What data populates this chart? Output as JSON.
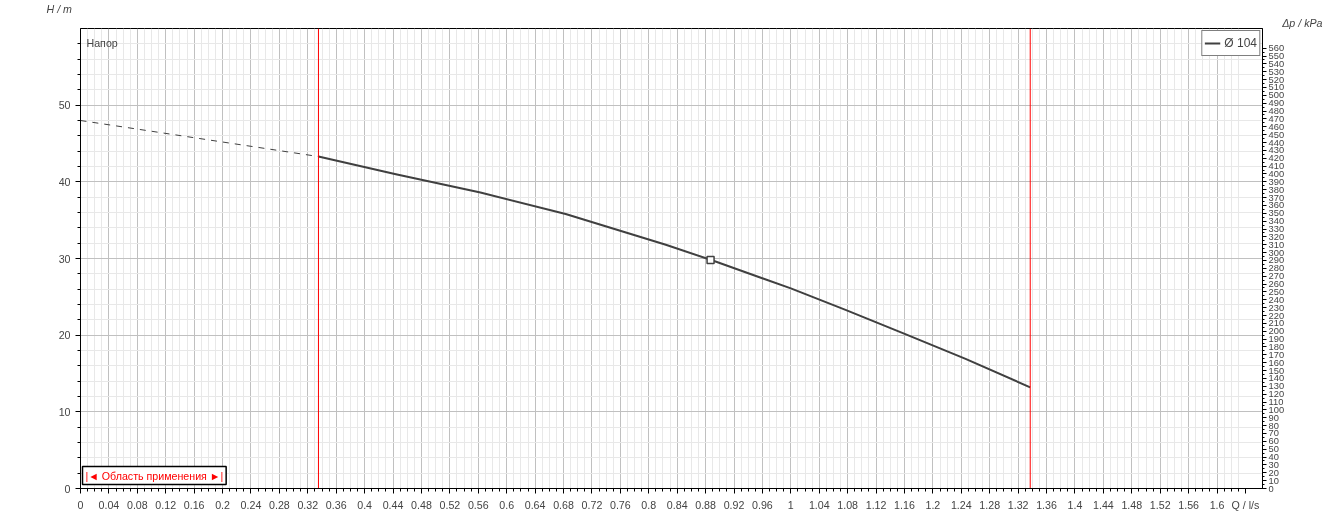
{
  "chart_data": {
    "type": "line",
    "xlabel": "Q / l/s",
    "ylabel": "H / m",
    "y2label": "Δp / kPa",
    "annotations": [
      "Напор",
      "|◄ Область применения ►|"
    ],
    "xlim": [
      0,
      1.664
    ],
    "ylim": [
      0,
      60
    ],
    "y2lim": [
      0,
      585
    ],
    "xticks": [
      0,
      0.04,
      0.08,
      0.12,
      0.16,
      0.2,
      0.24,
      0.28,
      0.32,
      0.36,
      0.4,
      0.44,
      0.48,
      0.52,
      0.56,
      0.6,
      0.64,
      0.68,
      0.72,
      0.76,
      0.8,
      0.84,
      0.88,
      0.92,
      0.96,
      1,
      1.04,
      1.08,
      1.12,
      1.16,
      1.2,
      1.24,
      1.28,
      1.32,
      1.36,
      1.4,
      1.44,
      1.48,
      1.52,
      1.56,
      1.6
    ],
    "yticks": [
      0,
      10,
      20,
      30,
      40,
      50
    ],
    "y2ticks": [
      0,
      10,
      20,
      30,
      40,
      50,
      60,
      70,
      80,
      90,
      100,
      110,
      120,
      130,
      140,
      150,
      160,
      170,
      180,
      190,
      200,
      210,
      220,
      230,
      240,
      250,
      260,
      270,
      280,
      290,
      300,
      310,
      320,
      330,
      340,
      350,
      360,
      370,
      380,
      390,
      400,
      410,
      420,
      430,
      440,
      450,
      460,
      470,
      480,
      490,
      500,
      510,
      520,
      530,
      540,
      550,
      560
    ],
    "grid": true,
    "legend": "top right",
    "series": [
      {
        "x": [
          0,
          0.335
        ],
        "values": [
          48.0,
          43.3
        ],
        "color": "#404040",
        "line_style": "dashed"
      },
      {
        "name": "Ø 104",
        "x": [
          0.335,
          0.444,
          0.563,
          0.683,
          0.824,
          0.891,
          1.0,
          1.077,
          1.162,
          1.246,
          1.337
        ],
        "values": [
          43.3,
          41.0,
          38.6,
          35.8,
          31.8,
          29.7,
          26.1,
          23.3,
          20.1,
          16.9,
          13.2
        ],
        "color": "#404040",
        "line_style": "solid"
      },
      {
        "type": "scatter",
        "x": [
          0.887
        ],
        "values": [
          29.8
        ],
        "color": "#404040",
        "marker": "square"
      }
    ],
    "ref_lines": [
      {
        "axis": "x",
        "value": 0.335,
        "color": "#ff0000"
      },
      {
        "axis": "x",
        "value": 1.337,
        "color": "#ff0000"
      }
    ]
  }
}
